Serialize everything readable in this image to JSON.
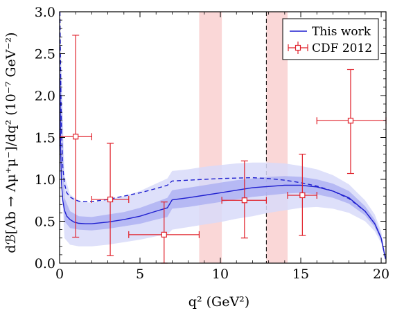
{
  "chart_data": {
    "type": "line",
    "xlabel": "q² (GeV²)",
    "ylabel": "dℬ[Λb → Λμ⁺μ⁻]/dq² (10⁻⁷ GeV⁻²)",
    "xlim": [
      0,
      20.3
    ],
    "ylim": [
      0,
      3.0
    ],
    "x_ticks": [
      0,
      5,
      10,
      15,
      20
    ],
    "x_tick_labels": [
      "0",
      "5",
      "10",
      "15",
      "20"
    ],
    "y_ticks": [
      0,
      0.5,
      1.0,
      1.5,
      2.0,
      2.5,
      3.0
    ],
    "y_tick_labels": [
      "0.0",
      "0.5",
      "1.0",
      "1.5",
      "2.0",
      "2.5",
      "3.0"
    ],
    "legend": {
      "placement": "top-right",
      "entries": [
        "This work",
        "CDF 2012"
      ]
    },
    "colors": {
      "theory": "#1f1fcf",
      "theory_band_inner": "#a8acf2",
      "theory_band_outer": "#d8daf9",
      "cdf": "#e0202a",
      "veto_band": "#f8c9c9"
    },
    "vetoed_regions": [
      [
        8.68,
        10.09
      ],
      [
        12.86,
        14.18
      ]
    ],
    "threshold_line_x": 12.86,
    "series": [
      {
        "name": "This work",
        "style": "solid",
        "x": [
          0.02,
          0.06,
          0.12,
          0.2,
          0.3,
          0.45,
          0.65,
          0.9,
          1.2,
          1.6,
          2.0,
          3.0,
          4.0,
          5.0,
          6.0,
          6.7,
          7.0,
          8.0,
          9.0,
          10.0,
          11.0,
          12.0,
          13.0,
          14.0,
          15.0,
          16.0,
          17.0,
          18.0,
          19.0,
          19.6,
          20.0,
          20.27
        ],
        "y": [
          2.2,
          1.4,
          0.95,
          0.75,
          0.63,
          0.56,
          0.52,
          0.49,
          0.475,
          0.47,
          0.47,
          0.49,
          0.52,
          0.56,
          0.62,
          0.66,
          0.755,
          0.78,
          0.81,
          0.84,
          0.87,
          0.9,
          0.915,
          0.93,
          0.93,
          0.91,
          0.86,
          0.78,
          0.62,
          0.47,
          0.3,
          0.05
        ]
      },
      {
        "name": "dashed",
        "style": "dashed",
        "x": [
          0.02,
          0.06,
          0.12,
          0.2,
          0.3,
          0.45,
          0.65,
          0.9,
          1.2,
          1.6,
          2.0,
          3.0,
          4.0,
          5.0,
          6.0,
          6.7,
          7.0,
          8.0,
          9.0,
          10.0,
          11.0,
          12.0,
          13.0,
          14.0,
          15.0,
          16.0,
          17.0,
          18.0,
          19.0,
          19.6,
          20.0,
          20.27
        ],
        "y": [
          3.0,
          2.3,
          1.55,
          1.15,
          0.95,
          0.84,
          0.79,
          0.76,
          0.74,
          0.735,
          0.735,
          0.76,
          0.8,
          0.84,
          0.89,
          0.93,
          0.98,
          0.99,
          1.0,
          1.01,
          1.015,
          1.02,
          1.01,
          0.99,
          0.96,
          0.92,
          0.86,
          0.77,
          0.62,
          0.47,
          0.3,
          0.05
        ]
      }
    ],
    "band_inner": {
      "x": [
        0.02,
        0.3,
        0.65,
        1.2,
        2.0,
        3.0,
        4.0,
        5.0,
        6.0,
        6.7,
        7.0,
        8.0,
        9.0,
        10.0,
        11.0,
        12.0,
        13.0,
        14.0,
        15.0,
        16.0,
        17.0,
        18.0,
        19.0,
        19.6,
        20.0,
        20.27
      ],
      "low": [
        1.9,
        0.5,
        0.42,
        0.4,
        0.39,
        0.41,
        0.44,
        0.47,
        0.52,
        0.55,
        0.65,
        0.67,
        0.7,
        0.73,
        0.76,
        0.79,
        0.81,
        0.83,
        0.84,
        0.82,
        0.78,
        0.71,
        0.57,
        0.43,
        0.27,
        0.04
      ],
      "high": [
        2.6,
        0.78,
        0.62,
        0.56,
        0.55,
        0.58,
        0.61,
        0.66,
        0.73,
        0.78,
        0.87,
        0.9,
        0.93,
        0.96,
        0.99,
        1.01,
        1.03,
        1.04,
        1.03,
        1.0,
        0.95,
        0.86,
        0.68,
        0.52,
        0.33,
        0.06
      ]
    },
    "band_outer": {
      "x": [
        0.02,
        0.3,
        0.65,
        1.2,
        2.0,
        3.0,
        4.0,
        5.0,
        6.0,
        6.7,
        7.0,
        8.0,
        9.0,
        10.0,
        11.0,
        12.0,
        13.0,
        14.0,
        15.0,
        16.0,
        17.0,
        18.0,
        19.0,
        19.6,
        20.0,
        20.27
      ],
      "low": [
        1.4,
        0.3,
        0.22,
        0.2,
        0.2,
        0.22,
        0.25,
        0.28,
        0.32,
        0.34,
        0.4,
        0.43,
        0.46,
        0.49,
        0.53,
        0.56,
        0.6,
        0.63,
        0.66,
        0.67,
        0.65,
        0.6,
        0.5,
        0.38,
        0.24,
        0.03
      ],
      "high": [
        3.0,
        1.05,
        0.82,
        0.74,
        0.72,
        0.76,
        0.8,
        0.86,
        0.95,
        1.01,
        1.1,
        1.12,
        1.15,
        1.17,
        1.19,
        1.2,
        1.2,
        1.19,
        1.16,
        1.12,
        1.05,
        0.94,
        0.75,
        0.58,
        0.38,
        0.08
      ]
    },
    "cdf_points": [
      {
        "x": 1.0,
        "y": 1.51,
        "xlo": 0.0,
        "xhi": 2.0,
        "ylo": 0.31,
        "yhi": 2.72
      },
      {
        "x": 3.15,
        "y": 0.76,
        "xlo": 2.0,
        "xhi": 4.3,
        "ylo": 0.09,
        "yhi": 1.43
      },
      {
        "x": 6.5,
        "y": 0.34,
        "xlo": 4.3,
        "xhi": 8.68,
        "ylo": 0.0,
        "yhi": 0.73
      },
      {
        "x": 11.5,
        "y": 0.75,
        "xlo": 10.09,
        "xhi": 12.86,
        "ylo": 0.3,
        "yhi": 1.22
      },
      {
        "x": 15.1,
        "y": 0.81,
        "xlo": 14.18,
        "xhi": 16.0,
        "ylo": 0.33,
        "yhi": 1.3
      },
      {
        "x": 18.1,
        "y": 1.7,
        "xlo": 16.0,
        "xhi": 20.3,
        "ylo": 1.07,
        "yhi": 2.31
      }
    ]
  }
}
